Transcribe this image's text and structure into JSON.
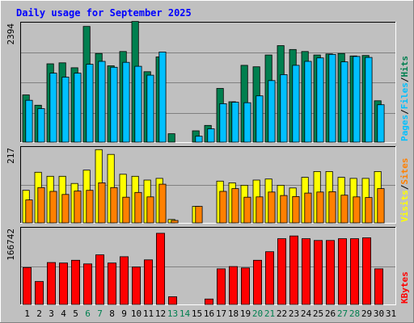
{
  "title": "Daily usage for September 2025",
  "colors": {
    "page_bg": "#c0c0c0",
    "plot_bg": "#c0c0c0",
    "title": "#0000ff",
    "hits": "#007f4f",
    "files": "#00c0ff",
    "sites": "#ff8000",
    "visits": "#ffff00",
    "kbytes": "#ff0000",
    "weekend_label": "#007f4f",
    "weekday_label": "#000000",
    "grid": "#808080"
  },
  "chart_data": [
    {
      "type": "bar",
      "panel": "hits-files",
      "ymax_label": "2394",
      "ymax": 2394,
      "categories": [
        "1",
        "2",
        "3",
        "4",
        "5",
        "6",
        "7",
        "8",
        "9",
        "10",
        "11",
        "12",
        "13",
        "14",
        "15",
        "16",
        "17",
        "18",
        "19",
        "20",
        "21",
        "22",
        "23",
        "24",
        "25",
        "26",
        "27",
        "28",
        "29",
        "30",
        "31"
      ],
      "weekend_days": [
        "6",
        "7",
        "13",
        "14",
        "20",
        "21",
        "27",
        "28"
      ],
      "legend": [
        {
          "key": "hits",
          "label": "Hits"
        },
        {
          "key": "sep1",
          "label": "/"
        },
        {
          "key": "files",
          "label": "Files"
        },
        {
          "key": "sep2",
          "label": "/"
        },
        {
          "key": "pages",
          "label": "Pages"
        }
      ],
      "series": [
        {
          "name": "Hits",
          "values": [
            960,
            750,
            1590,
            1610,
            1510,
            2350,
            1800,
            1550,
            1840,
            2450,
            1430,
            1730,
            170,
            0,
            230,
            340,
            1090,
            820,
            1560,
            1530,
            1770,
            1960,
            1880,
            1840,
            1770,
            1790,
            1800,
            1750,
            1760,
            840,
            0
          ]
        },
        {
          "name": "Files",
          "values": [
            850,
            680,
            1400,
            1320,
            1400,
            1580,
            1640,
            1520,
            1620,
            1540,
            1360,
            1830,
            0,
            0,
            120,
            270,
            780,
            810,
            800,
            940,
            1250,
            1370,
            1560,
            1640,
            1710,
            1780,
            1630,
            1740,
            1720,
            760,
            0
          ]
        }
      ]
    },
    {
      "type": "bar",
      "panel": "sites-visits",
      "ymax_label": "217",
      "ymax": 217,
      "categories": [
        "1",
        "2",
        "3",
        "4",
        "5",
        "6",
        "7",
        "8",
        "9",
        "10",
        "11",
        "12",
        "13",
        "14",
        "15",
        "16",
        "17",
        "18",
        "19",
        "20",
        "21",
        "22",
        "23",
        "24",
        "25",
        "26",
        "27",
        "28",
        "29",
        "30",
        "31"
      ],
      "legend": [
        {
          "key": "sites",
          "label": "Sites"
        },
        {
          "key": "sep1",
          "label": "/"
        },
        {
          "key": "visits",
          "label": "Visits"
        }
      ],
      "series": [
        {
          "name": "Visits",
          "values": [
            95,
            148,
            136,
            136,
            115,
            154,
            214,
            200,
            142,
            136,
            125,
            130,
            10,
            0,
            48,
            0,
            122,
            117,
            110,
            125,
            128,
            110,
            102,
            133,
            150,
            150,
            133,
            130,
            130,
            150,
            0
          ]
        },
        {
          "name": "Sites",
          "values": [
            67,
            103,
            92,
            83,
            93,
            95,
            117,
            103,
            75,
            89,
            76,
            113,
            7,
            0,
            48,
            0,
            92,
            100,
            75,
            76,
            90,
            80,
            77,
            87,
            90,
            91,
            81,
            76,
            74,
            100,
            0
          ]
        }
      ]
    },
    {
      "type": "bar",
      "panel": "kbytes",
      "ymax_label": "166742",
      "ymax": 166742,
      "categories": [
        "1",
        "2",
        "3",
        "4",
        "5",
        "6",
        "7",
        "8",
        "9",
        "10",
        "11",
        "12",
        "13",
        "14",
        "15",
        "16",
        "17",
        "18",
        "19",
        "20",
        "21",
        "22",
        "23",
        "24",
        "25",
        "26",
        "27",
        "28",
        "29",
        "30",
        "31"
      ],
      "legend": [
        {
          "key": "kbytes",
          "label": "KBytes"
        }
      ],
      "series": [
        {
          "name": "KBytes",
          "values": [
            82000,
            51000,
            93000,
            92000,
            98000,
            90000,
            110000,
            92000,
            106000,
            83000,
            99000,
            158000,
            17000,
            0,
            0,
            12000,
            79000,
            84000,
            81000,
            98000,
            117000,
            146000,
            152000,
            146000,
            142000,
            142000,
            146000,
            146000,
            148000,
            79000,
            0
          ]
        }
      ]
    }
  ]
}
